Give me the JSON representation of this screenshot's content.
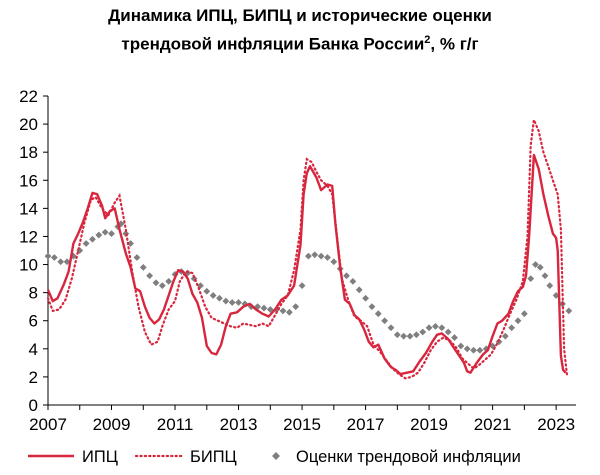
{
  "chart_data": {
    "type": "line",
    "title_line1": "Динамика ИПЦ, БИПЦ и исторические оценки",
    "title_line2": "трендовой инфляции Банка России",
    "title_sup": "2",
    "title_suffix": ", % г/г",
    "xlabel": "",
    "ylabel": "",
    "xlim": [
      2007.0,
      2023.5
    ],
    "ylim": [
      0,
      22
    ],
    "yticks": [
      "0",
      "2",
      "4",
      "6",
      "8",
      "10",
      "12",
      "14",
      "16",
      "18",
      "20",
      "22"
    ],
    "xticks": [
      "2007",
      "2009",
      "2011",
      "2013",
      "2015",
      "2017",
      "2019",
      "2021",
      "2023"
    ],
    "grid": false,
    "legend_position": "bottom",
    "colors": {
      "cpi": "#d7263d",
      "core": "#d7263d",
      "trend": "#7f7f7f"
    },
    "series": [
      {
        "name": "ИПЦ",
        "style": "solid",
        "x": [
          2007.0,
          2007.15,
          2007.3,
          2007.5,
          2007.65,
          2007.8,
          2007.95,
          2008.1,
          2008.25,
          2008.4,
          2008.55,
          2008.7,
          2008.8,
          2008.95,
          2009.1,
          2009.25,
          2009.45,
          2009.6,
          2009.75,
          2009.9,
          2010.05,
          2010.2,
          2010.35,
          2010.5,
          2010.65,
          2010.8,
          2010.95,
          2011.1,
          2011.25,
          2011.4,
          2011.55,
          2011.7,
          2011.85,
          2012.0,
          2012.15,
          2012.3,
          2012.45,
          2012.6,
          2012.75,
          2012.95,
          2013.15,
          2013.35,
          2013.55,
          2013.75,
          2013.95,
          2014.15,
          2014.35,
          2014.55,
          2014.75,
          2014.95,
          2015.05,
          2015.15,
          2015.25,
          2015.45,
          2015.6,
          2015.8,
          2015.95,
          2016.05,
          2016.2,
          2016.35,
          2016.5,
          2016.65,
          2016.8,
          2016.95,
          2017.1,
          2017.25,
          2017.4,
          2017.6,
          2017.8,
          2017.95,
          2018.1,
          2018.3,
          2018.5,
          2018.7,
          2018.9,
          2019.1,
          2019.25,
          2019.4,
          2019.6,
          2019.8,
          2019.95,
          2020.1,
          2020.2,
          2020.3,
          2020.5,
          2020.7,
          2020.85,
          2021.0,
          2021.15,
          2021.3,
          2021.5,
          2021.65,
          2021.8,
          2021.95,
          2022.05,
          2022.15,
          2022.3,
          2022.45,
          2022.6,
          2022.75,
          2022.9,
          2023.0,
          2023.05,
          2023.15,
          2023.22,
          2023.3
        ],
        "values": [
          8.2,
          7.4,
          7.6,
          8.6,
          9.5,
          11.5,
          12.2,
          13.0,
          14.0,
          15.1,
          15.0,
          14.2,
          13.3,
          13.8,
          14.0,
          12.5,
          10.8,
          9.8,
          8.3,
          8.1,
          7.0,
          6.2,
          5.8,
          6.1,
          6.8,
          7.8,
          8.8,
          9.6,
          9.5,
          9.0,
          7.9,
          7.3,
          6.2,
          4.2,
          3.7,
          3.6,
          4.3,
          5.6,
          6.5,
          6.6,
          7.0,
          7.2,
          6.8,
          6.5,
          6.3,
          6.8,
          7.5,
          7.8,
          8.5,
          11.4,
          15.0,
          16.5,
          17.0,
          16.2,
          15.3,
          15.7,
          15.6,
          12.9,
          9.8,
          7.5,
          7.2,
          6.4,
          6.1,
          5.4,
          4.5,
          4.1,
          4.3,
          3.3,
          2.7,
          2.5,
          2.2,
          2.3,
          2.4,
          3.1,
          3.7,
          4.5,
          5.0,
          5.1,
          4.7,
          4.0,
          3.5,
          3.0,
          2.4,
          2.3,
          3.0,
          3.6,
          3.9,
          4.9,
          5.8,
          6.0,
          6.5,
          7.4,
          8.1,
          8.4,
          9.2,
          12.0,
          17.8,
          16.8,
          15.0,
          13.5,
          12.2,
          11.9,
          11.0,
          3.5,
          2.5,
          2.3
        ]
      },
      {
        "name": "БИПЦ",
        "style": "dotted",
        "x": [
          2007.0,
          2007.15,
          2007.35,
          2007.55,
          2007.75,
          2007.95,
          2008.15,
          2008.35,
          2008.5,
          2008.7,
          2008.9,
          2009.1,
          2009.25,
          2009.45,
          2009.65,
          2009.85,
          2010.05,
          2010.25,
          2010.45,
          2010.6,
          2010.8,
          2011.0,
          2011.15,
          2011.35,
          2011.55,
          2011.75,
          2011.95,
          2012.15,
          2012.35,
          2012.55,
          2012.75,
          2012.95,
          2013.15,
          2013.35,
          2013.55,
          2013.75,
          2013.95,
          2014.15,
          2014.35,
          2014.55,
          2014.75,
          2014.95,
          2015.05,
          2015.15,
          2015.3,
          2015.45,
          2015.6,
          2015.8,
          2015.95,
          2016.1,
          2016.25,
          2016.45,
          2016.65,
          2016.85,
          2017.05,
          2017.25,
          2017.45,
          2017.65,
          2017.85,
          2018.05,
          2018.25,
          2018.45,
          2018.65,
          2018.85,
          2019.05,
          2019.25,
          2019.45,
          2019.65,
          2019.85,
          2020.05,
          2020.25,
          2020.4,
          2020.55,
          2020.75,
          2020.95,
          2021.15,
          2021.35,
          2021.55,
          2021.75,
          2021.95,
          2022.1,
          2022.2,
          2022.3,
          2022.45,
          2022.6,
          2022.75,
          2022.9,
          2023.05,
          2023.15,
          2023.25,
          2023.35
        ],
        "values": [
          7.6,
          6.7,
          6.8,
          7.5,
          9.0,
          11.0,
          13.0,
          14.6,
          14.8,
          14.0,
          13.5,
          14.4,
          14.9,
          12.5,
          9.5,
          7.0,
          5.2,
          4.3,
          4.5,
          5.6,
          6.8,
          7.4,
          8.8,
          9.5,
          9.4,
          8.3,
          7.0,
          6.2,
          6.0,
          5.8,
          5.6,
          5.5,
          5.8,
          5.7,
          5.6,
          5.8,
          5.6,
          6.4,
          7.2,
          7.8,
          9.6,
          12.5,
          16.0,
          17.5,
          17.3,
          16.6,
          16.0,
          15.6,
          15.0,
          12.0,
          9.0,
          7.5,
          6.3,
          6.0,
          5.6,
          4.3,
          3.8,
          3.2,
          2.6,
          2.2,
          1.9,
          2.0,
          2.3,
          3.0,
          3.9,
          4.5,
          4.8,
          4.6,
          4.1,
          3.3,
          2.9,
          2.6,
          2.8,
          3.2,
          3.6,
          4.4,
          5.4,
          6.5,
          7.5,
          8.8,
          12.0,
          18.5,
          20.3,
          19.5,
          18.0,
          17.0,
          16.0,
          15.0,
          12.5,
          4.0,
          2.0
        ]
      },
      {
        "name": "Оценки трендовой инфляции",
        "style": "markers",
        "x": [
          2007.0,
          2007.2,
          2007.4,
          2007.6,
          2007.8,
          2008.0,
          2008.2,
          2008.4,
          2008.6,
          2008.8,
          2009.0,
          2009.2,
          2009.3,
          2009.45,
          2009.6,
          2009.8,
          2010.0,
          2010.2,
          2010.4,
          2010.6,
          2010.8,
          2011.0,
          2011.2,
          2011.4,
          2011.6,
          2011.8,
          2012.0,
          2012.2,
          2012.4,
          2012.6,
          2012.8,
          2013.0,
          2013.2,
          2013.4,
          2013.6,
          2013.8,
          2014.0,
          2014.2,
          2014.4,
          2014.6,
          2014.8,
          2015.0,
          2015.2,
          2015.4,
          2015.6,
          2015.8,
          2016.0,
          2016.2,
          2016.4,
          2016.6,
          2016.8,
          2017.0,
          2017.2,
          2017.4,
          2017.6,
          2017.8,
          2018.0,
          2018.2,
          2018.4,
          2018.6,
          2018.8,
          2019.0,
          2019.2,
          2019.4,
          2019.6,
          2019.8,
          2020.0,
          2020.2,
          2020.4,
          2020.6,
          2020.8,
          2021.0,
          2021.2,
          2021.4,
          2021.6,
          2021.8,
          2022.0,
          2022.2,
          2022.35,
          2022.5,
          2022.65,
          2022.8,
          2023.0,
          2023.2,
          2023.4
        ],
        "values": [
          10.6,
          10.5,
          10.2,
          10.2,
          10.6,
          11.0,
          11.5,
          11.8,
          12.1,
          12.3,
          12.2,
          12.7,
          12.9,
          12.2,
          11.5,
          10.5,
          9.8,
          9.2,
          8.7,
          8.5,
          8.8,
          9.3,
          9.5,
          9.4,
          9.0,
          8.5,
          8.1,
          7.8,
          7.6,
          7.4,
          7.3,
          7.3,
          7.2,
          7.0,
          7.0,
          6.9,
          6.8,
          6.8,
          6.7,
          6.6,
          7.0,
          8.5,
          10.6,
          10.7,
          10.6,
          10.5,
          10.2,
          9.7,
          9.2,
          8.8,
          8.2,
          7.6,
          7.0,
          6.5,
          6.0,
          5.5,
          5.0,
          4.9,
          4.9,
          5.0,
          5.2,
          5.5,
          5.6,
          5.5,
          5.2,
          4.8,
          4.2,
          4.0,
          3.9,
          3.9,
          4.0,
          4.2,
          4.5,
          4.9,
          5.5,
          6.0,
          6.5,
          9.0,
          10.0,
          9.8,
          9.2,
          8.5,
          7.8,
          7.2,
          6.7
        ]
      }
    ]
  }
}
